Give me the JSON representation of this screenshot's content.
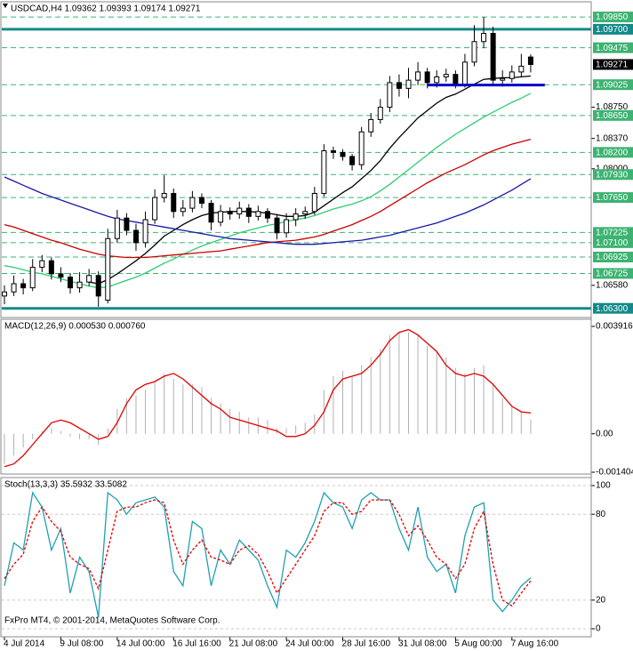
{
  "chart_data": [
    {
      "type": "candlestick",
      "title": "USDCAD,H4 1.09362 1.09393 1.09174 1.09271",
      "categories": [
        "4 Jul 2014",
        null,
        null,
        null,
        null,
        null,
        "9 Jul 08:00",
        null,
        null,
        null,
        null,
        null,
        "14 Jul 00:00",
        null,
        null,
        null,
        null,
        null,
        "16 Jul 16:00",
        null,
        null,
        null,
        null,
        null,
        "21 Jul 08:00",
        null,
        null,
        null,
        null,
        null,
        "24 Jul 00:00",
        null,
        null,
        null,
        null,
        null,
        "28 Jul 16:00",
        null,
        null,
        null,
        null,
        null,
        "31 Jul 08:00",
        null,
        null,
        null,
        null,
        null,
        "5 Aug 00:00",
        null,
        null,
        null,
        null,
        null,
        "7 Aug 16:00",
        null,
        null
      ],
      "open": [
        1.0645,
        1.065,
        1.066,
        1.0655,
        1.068,
        1.0688,
        1.0672,
        1.0668,
        1.0655,
        1.0662,
        1.067,
        1.064,
        1.0715,
        1.074,
        1.0725,
        1.071,
        1.0738,
        1.0765,
        1.077,
        1.0748,
        1.0752,
        1.0765,
        1.0758,
        1.0735,
        1.0748,
        1.0745,
        1.0752,
        1.0742,
        1.0748,
        1.074,
        1.0722,
        1.0738,
        1.0745,
        1.0748,
        1.077,
        1.0822,
        1.082,
        1.0815,
        1.0805,
        1.0845,
        1.086,
        1.0875,
        1.0905,
        1.0898,
        1.0908,
        1.0918,
        1.0905,
        1.0912,
        1.0915,
        1.0903,
        1.093,
        1.0955,
        1.0965,
        1.0908,
        1.091,
        1.0918,
        1.09362
      ],
      "high": [
        1.0658,
        1.067,
        1.0666,
        1.069,
        1.0695,
        1.0692,
        1.068,
        1.0673,
        1.0674,
        1.0678,
        1.0675,
        1.0727,
        1.075,
        1.0746,
        1.0733,
        1.0748,
        1.0775,
        1.0792,
        1.0776,
        1.0762,
        1.0773,
        1.077,
        1.0762,
        1.0756,
        1.0753,
        1.076,
        1.0757,
        1.0755,
        1.0752,
        1.0745,
        1.0746,
        1.0752,
        1.0754,
        1.0778,
        1.083,
        1.0827,
        1.0824,
        1.0818,
        1.0851,
        1.0868,
        1.0885,
        1.0913,
        1.0915,
        1.0923,
        1.093,
        1.0923,
        1.092,
        1.0922,
        1.092,
        1.094,
        1.0975,
        1.0985,
        1.0973,
        1.092,
        1.0926,
        1.094,
        1.09393
      ],
      "low": [
        1.0635,
        1.0645,
        1.0647,
        1.0651,
        1.0674,
        1.0665,
        1.0662,
        1.0648,
        1.0649,
        1.0657,
        1.0632,
        1.0636,
        1.071,
        1.0719,
        1.07,
        1.0704,
        1.0733,
        1.0759,
        1.074,
        1.0742,
        1.0747,
        1.0752,
        1.0725,
        1.073,
        1.0738,
        1.0739,
        1.0734,
        1.0737,
        1.0734,
        1.0714,
        1.0716,
        1.073,
        1.0739,
        1.0744,
        1.0766,
        1.0812,
        1.081,
        1.0798,
        1.0799,
        1.0839,
        1.0855,
        1.0869,
        1.0888,
        1.0886,
        1.0902,
        1.0898,
        1.0899,
        1.0906,
        1.0898,
        1.0899,
        1.0925,
        1.0947,
        1.0903,
        1.09,
        1.0905,
        1.0912,
        1.09174
      ],
      "close": [
        1.065,
        1.066,
        1.0655,
        1.068,
        1.0688,
        1.0672,
        1.0668,
        1.0655,
        1.0662,
        1.067,
        1.0645,
        1.0715,
        1.074,
        1.0725,
        1.071,
        1.0738,
        1.0765,
        1.077,
        1.0748,
        1.0752,
        1.0765,
        1.0758,
        1.0735,
        1.0748,
        1.0745,
        1.0752,
        1.0742,
        1.0748,
        1.074,
        1.0722,
        1.0738,
        1.0745,
        1.0748,
        1.077,
        1.0822,
        1.082,
        1.0815,
        1.0805,
        1.0845,
        1.086,
        1.0875,
        1.0905,
        1.0898,
        1.0908,
        1.0918,
        1.0905,
        1.0912,
        1.0915,
        1.0903,
        1.093,
        1.0955,
        1.0965,
        1.0908,
        1.091,
        1.0918,
        1.0925,
        1.09271
      ],
      "series": [
        {
          "color": "#000000",
          "values": [
            null,
            null,
            null,
            null,
            null,
            null,
            null,
            null,
            null,
            1.0662,
            1.066,
            1.0665,
            1.0672,
            1.068,
            1.0688,
            1.0697,
            1.0707,
            1.0718,
            1.0725,
            1.0732,
            1.0738,
            1.0743,
            1.0746,
            1.0747,
            1.0748,
            1.0748,
            1.0748,
            1.0747,
            1.0746,
            1.0744,
            1.0742,
            1.0742,
            1.0743,
            1.0747,
            1.0755,
            1.0763,
            1.0771,
            1.0778,
            1.0788,
            1.0798,
            1.081,
            1.0825,
            1.0838,
            1.085,
            1.0862,
            1.0871,
            1.088,
            1.0887,
            1.0891,
            1.0897,
            1.0903,
            1.0909,
            1.091,
            1.0911,
            1.0911,
            1.0912,
            1.0913
          ]
        },
        {
          "color": "#2ecc71",
          "values": [
            1.0682,
            1.068,
            1.0677,
            1.0674,
            1.0672,
            1.0669,
            1.0666,
            1.0663,
            1.066,
            1.0657,
            1.0655,
            1.0656,
            1.066,
            1.0664,
            1.0668,
            1.0673,
            1.0679,
            1.0685,
            1.069,
            1.0696,
            1.0701,
            1.0706,
            1.071,
            1.0714,
            1.0718,
            1.0722,
            1.0725,
            1.0728,
            1.0731,
            1.0733,
            1.0736,
            1.0738,
            1.074,
            1.0743,
            1.0747,
            1.0751,
            1.0754,
            1.0757,
            1.0761,
            1.0766,
            1.0773,
            1.0781,
            1.079,
            1.0799,
            1.0808,
            1.0817,
            1.0826,
            1.0834,
            1.0842,
            1.0849,
            1.0856,
            1.0863,
            1.0869,
            1.0875,
            1.0881,
            1.0886,
            1.0892
          ]
        },
        {
          "color": "#cc0000",
          "values": [
            1.0732,
            1.0729,
            1.0725,
            1.0721,
            1.0717,
            1.0713,
            1.071,
            1.0706,
            1.0702,
            1.0699,
            1.0696,
            1.0694,
            1.0693,
            1.0692,
            1.0692,
            1.0692,
            1.0693,
            1.0694,
            1.0695,
            1.0696,
            1.0697,
            1.0698,
            1.0699,
            1.07,
            1.0702,
            1.0704,
            1.0706,
            1.0708,
            1.071,
            1.0711,
            1.0712,
            1.0713,
            1.0715,
            1.0717,
            1.072,
            1.0724,
            1.0728,
            1.0732,
            1.0737,
            1.0742,
            1.0748,
            1.0755,
            1.0762,
            1.0769,
            1.0776,
            1.0783,
            1.0789,
            1.0795,
            1.08,
            1.0805,
            1.0811,
            1.0817,
            1.0822,
            1.0826,
            1.083,
            1.0833,
            1.0836
          ]
        },
        {
          "color": "#1a1aa6",
          "values": [
            1.079,
            1.0785,
            1.078,
            1.0775,
            1.077,
            1.0766,
            1.0762,
            1.0758,
            1.0754,
            1.075,
            1.0746,
            1.0742,
            1.0739,
            1.0737,
            1.0735,
            1.0733,
            1.0731,
            1.0729,
            1.0727,
            1.0725,
            1.0723,
            1.0721,
            1.0719,
            1.0717,
            1.0715,
            1.0714,
            1.0713,
            1.0712,
            1.0711,
            1.071,
            1.0709,
            1.0708,
            1.0708,
            1.0708,
            1.0709,
            1.071,
            1.0711,
            1.0712,
            1.0713,
            1.0715,
            1.0717,
            1.0719,
            1.0722,
            1.0725,
            1.0728,
            1.0731,
            1.0734,
            1.0738,
            1.0742,
            1.0746,
            1.0751,
            1.0756,
            1.0762,
            1.0768,
            1.0774,
            1.0781,
            1.0788
          ]
        }
      ],
      "ylim": [
        1.0621,
        1.0997
      ],
      "yticks": [
        {
          "value": 1.0875,
          "label": "1.08750"
        },
        {
          "value": 1.0837,
          "label": "1.08370"
        },
        {
          "value": 1.08,
          "label": "1.08000"
        },
        {
          "value": 1.0658,
          "label": "1.06580"
        }
      ],
      "levels": [
        {
          "value": 1.0985,
          "label": "1.09850",
          "color": "#3cb371",
          "line": "dash"
        },
        {
          "value": 1.097,
          "label": "1.09700",
          "color": "#138a8a",
          "line": "solid"
        },
        {
          "value": 1.09475,
          "label": "1.09475",
          "color": "#3cb371",
          "line": "dash"
        },
        {
          "value": 1.09271,
          "label": "1.09271",
          "color": "#000000",
          "line": "none"
        },
        {
          "value": 1.09025,
          "label": "1.09025",
          "color": "#3cb371",
          "line": "dash"
        },
        {
          "value": 1.0865,
          "label": "1.08650",
          "color": "#3cb371",
          "line": "dash"
        },
        {
          "value": 1.082,
          "label": "1.08200",
          "color": "#3cb371",
          "line": "dash"
        },
        {
          "value": 1.0793,
          "label": "1.07930",
          "color": "#3cb371",
          "line": "dash"
        },
        {
          "value": 1.0765,
          "label": "1.07650",
          "color": "#3cb371",
          "line": "dash"
        },
        {
          "value": 1.07225,
          "label": "1.07225",
          "color": "#3cb371",
          "line": "dash"
        },
        {
          "value": 1.071,
          "label": "1.07100",
          "color": "#3cb371",
          "line": "dash"
        },
        {
          "value": 1.06925,
          "label": "1.06925",
          "color": "#3cb371",
          "line": "dash"
        },
        {
          "value": 1.06725,
          "label": "1.06725",
          "color": "#3cb371",
          "line": "dash"
        },
        {
          "value": 1.063,
          "label": "1.06300",
          "color": "#138a8a",
          "line": "solid"
        }
      ],
      "segment": {
        "value": 1.0902,
        "start": 45,
        "end": 57.5,
        "color": "#0000cd"
      }
    },
    {
      "type": "macd",
      "title": "MACD(12,26,9) 0.000530 0.000760",
      "series": [
        {
          "color": "#b0b0b0",
          "style": "histogram",
          "values": [
            -0.0011,
            -0.0008,
            -0.0005,
            -0.0002,
            0.0001,
            0.0002,
            0.0001,
            -0.0001,
            -0.0002,
            -0.0002,
            -0.0004,
            0.0002,
            0.0009,
            0.0013,
            0.0014,
            0.0016,
            0.0019,
            0.0022,
            0.002,
            0.0018,
            0.0018,
            0.0017,
            0.0013,
            0.0011,
            0.0009,
            0.0008,
            0.0006,
            0.0006,
            0.0005,
            0.0002,
            0.0002,
            0.0003,
            0.0004,
            0.0007,
            0.0016,
            0.0021,
            0.0023,
            0.0021,
            0.0025,
            0.0028,
            0.0031,
            0.0036,
            0.0037,
            0.0037,
            0.0036,
            0.0032,
            0.003,
            0.0028,
            0.0024,
            0.0022,
            0.0024,
            0.0025,
            0.0018,
            0.0013,
            0.001,
            0.0008,
            0.00053
          ]
        },
        {
          "color": "#e00000",
          "style": "line",
          "values": [
            -0.0012,
            -0.0011,
            -0.0008,
            -0.0004,
            0.0,
            0.0004,
            0.0005,
            0.0004,
            0.0002,
            0.0,
            -0.0002,
            -0.0001,
            0.0004,
            0.0011,
            0.0016,
            0.0018,
            0.0019,
            0.0021,
            0.0022,
            0.002,
            0.0017,
            0.0014,
            0.0011,
            0.0009,
            0.0006,
            0.0005,
            0.0004,
            0.0003,
            0.0002,
            0.0001,
            -0.0001,
            -0.0001,
            0.0,
            0.0003,
            0.0008,
            0.0016,
            0.002,
            0.0021,
            0.0022,
            0.0025,
            0.0029,
            0.0034,
            0.0037,
            0.0038,
            0.0036,
            0.0033,
            0.003,
            0.0025,
            0.0022,
            0.0021,
            0.0022,
            0.0021,
            0.0018,
            0.0014,
            0.001,
            0.0008,
            0.00076
          ]
        }
      ],
      "ylim": [
        -0.001404,
        0.003916
      ],
      "yticks": [
        0.003916,
        {
          "value": 0,
          "label": "0.00"
        },
        -0.001404
      ]
    },
    {
      "type": "stochastic",
      "title": "Stoch(13,3,3) 35.5932 33.5082",
      "series": [
        {
          "color": "#20a0b0",
          "style": "line",
          "values": [
            30,
            60,
            55,
            95,
            85,
            55,
            70,
            25,
            50,
            40,
            8,
            95,
            90,
            80,
            88,
            90,
            92,
            85,
            40,
            30,
            75,
            70,
            30,
            55,
            45,
            62,
            55,
            48,
            30,
            15,
            55,
            50,
            60,
            75,
            95,
            88,
            85,
            70,
            90,
            95,
            90,
            90,
            70,
            55,
            85,
            50,
            40,
            45,
            25,
            65,
            85,
            88,
            20,
            12,
            20,
            30,
            35.5932
          ]
        },
        {
          "color": "#e00000",
          "style": "line",
          "dash": true,
          "values": [
            35,
            45,
            52,
            75,
            85,
            75,
            68,
            50,
            45,
            42,
            28,
            55,
            82,
            85,
            85,
            88,
            90,
            88,
            62,
            45,
            55,
            62,
            50,
            48,
            45,
            55,
            58,
            52,
            40,
            25,
            35,
            45,
            55,
            65,
            82,
            88,
            88,
            80,
            82,
            90,
            90,
            90,
            80,
            65,
            72,
            62,
            50,
            45,
            35,
            45,
            70,
            82,
            45,
            20,
            16,
            25,
            33.5082
          ]
        }
      ],
      "ylim": [
        0,
        100
      ],
      "yticks": [
        100,
        80,
        20,
        0
      ],
      "grid": true
    }
  ],
  "footer": "FxPro MT4, © 2001-2014, MetaQuotes Software Corp."
}
